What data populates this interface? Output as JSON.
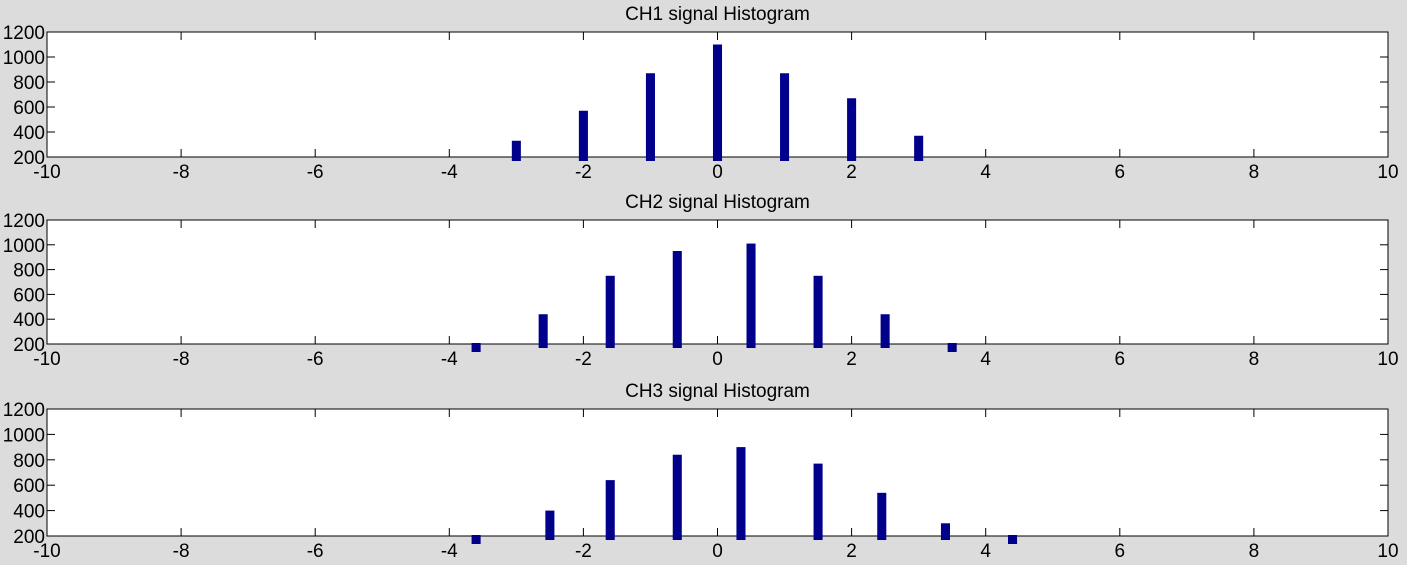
{
  "figure": {
    "background": "#dcdcdc",
    "axes_background": "#ffffff",
    "bar_color": "#00008b"
  },
  "chart_data": [
    {
      "type": "bar",
      "title": "CH1 signal Histogram",
      "xlabel": "",
      "ylabel": "",
      "xlim": [
        -10,
        10
      ],
      "ylim": [
        200,
        1200
      ],
      "xticks": [
        -10,
        -8,
        -6,
        -4,
        -2,
        0,
        2,
        4,
        6,
        8,
        10
      ],
      "yticks": [
        200,
        400,
        600,
        800,
        1000,
        1200
      ],
      "grid": true,
      "bar_width": 0.15,
      "x": [
        -3,
        -2,
        -1,
        0,
        1,
        2,
        3
      ],
      "values": [
        330,
        570,
        870,
        1100,
        870,
        670,
        370
      ]
    },
    {
      "type": "bar",
      "title": "CH2 signal Histogram",
      "xlabel": "",
      "ylabel": "",
      "xlim": [
        -10,
        10
      ],
      "ylim": [
        200,
        1200
      ],
      "xticks": [
        -10,
        -8,
        -6,
        -4,
        -2,
        0,
        2,
        4,
        6,
        8,
        10
      ],
      "yticks": [
        200,
        400,
        600,
        800,
        1000,
        1200
      ],
      "grid": true,
      "bar_width": 0.15,
      "x": [
        -3.6,
        -2.6,
        -1.6,
        -0.6,
        0.5,
        1.5,
        2.5,
        3.5
      ],
      "values": [
        150,
        440,
        750,
        950,
        1010,
        750,
        440,
        150
      ]
    },
    {
      "type": "bar",
      "title": "CH3 signal Histogram",
      "xlabel": "",
      "ylabel": "",
      "xlim": [
        -10,
        10
      ],
      "ylim": [
        200,
        1200
      ],
      "xticks": [
        -10,
        -8,
        -6,
        -4,
        -2,
        0,
        2,
        4,
        6,
        8,
        10
      ],
      "yticks": [
        200,
        400,
        600,
        800,
        1000,
        1200
      ],
      "grid": true,
      "bar_width": 0.15,
      "x": [
        -3.6,
        -2.5,
        -1.6,
        -0.6,
        0.35,
        1.5,
        2.45,
        3.4,
        4.4
      ],
      "values": [
        160,
        400,
        640,
        840,
        900,
        770,
        540,
        300,
        190
      ]
    }
  ]
}
